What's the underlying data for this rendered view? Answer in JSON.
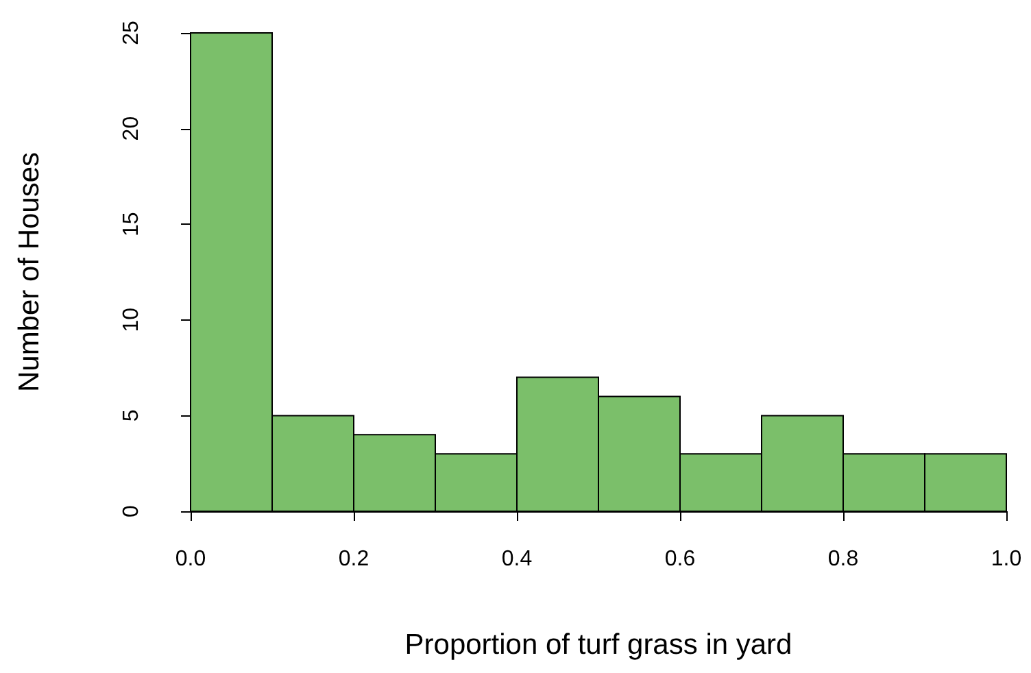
{
  "chart_data": {
    "type": "histogram",
    "xlabel": "Proportion of turf grass in yard",
    "ylabel": "Number of Houses",
    "bins": [
      0,
      0.1,
      0.2,
      0.3,
      0.4,
      0.5,
      0.6,
      0.7,
      0.8,
      0.9,
      1.0
    ],
    "values": [
      25,
      5,
      4,
      3,
      7,
      6,
      3,
      5,
      3,
      3
    ],
    "color": "#7bbf6a",
    "xlim": [
      0,
      1
    ],
    "ylim": [
      0,
      25
    ],
    "xticks": [
      {
        "value": 0,
        "label": "0.0"
      },
      {
        "value": 0.2,
        "label": "0.2"
      },
      {
        "value": 0.4,
        "label": "0.4"
      },
      {
        "value": 0.6,
        "label": "0.6"
      },
      {
        "value": 0.8,
        "label": "0.8"
      },
      {
        "value": 1,
        "label": "1.0"
      }
    ],
    "yticks": [
      0,
      5,
      10,
      15,
      20,
      25
    ],
    "grid": false
  }
}
